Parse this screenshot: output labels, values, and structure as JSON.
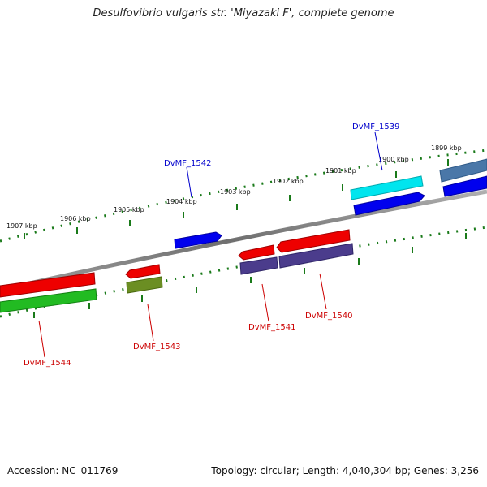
{
  "title": "Desulfovibrio vulgaris str. 'Miyazaki F', complete genome",
  "footer": {
    "accession": "Accession: NC_011769",
    "summary": "Topology: circular; Length: 4,040,304 bp; Genes: 3,256"
  },
  "colors": {
    "backbone": "#808080",
    "ruler": "#1a7a1a",
    "forward_label": "#0000cc",
    "reverse_label": "#cc0000"
  },
  "kbp_ticks": [
    {
      "name": "tick-1907",
      "label": "1907 kbp"
    },
    {
      "name": "tick-1906",
      "label": "1906 kbp"
    },
    {
      "name": "tick-1905",
      "label": "1905 kbp"
    },
    {
      "name": "tick-1904",
      "label": "1904 kbp"
    },
    {
      "name": "tick-1903",
      "label": "1903 kbp"
    },
    {
      "name": "tick-1902",
      "label": "1902 kbp"
    },
    {
      "name": "tick-1901",
      "label": "1901 kbp"
    },
    {
      "name": "tick-1900",
      "label": "1900 kbp"
    },
    {
      "name": "tick-1899",
      "label": "1899 kbp"
    }
  ],
  "gene_labels": [
    {
      "name": "label-dvmf-1539",
      "text": "DvMF_1539",
      "strand": "forward"
    },
    {
      "name": "label-dvmf-1542",
      "text": "DvMF_1542",
      "strand": "forward"
    },
    {
      "name": "label-dvmf-1541",
      "text": "DvMF_1541",
      "strand": "reverse"
    },
    {
      "name": "label-dvmf-1540",
      "text": "DvMF_1540",
      "strand": "reverse"
    },
    {
      "name": "label-dvmf-1543",
      "text": "DvMF_1543",
      "strand": "reverse"
    },
    {
      "name": "label-dvmf-1544",
      "text": "DvMF_1544",
      "strand": "reverse"
    }
  ],
  "features": [
    {
      "name": "forward-gene-blue-1",
      "color": "#0000ee"
    },
    {
      "name": "forward-gene-blue-2",
      "color": "#0000ee"
    },
    {
      "name": "forward-gene-blue-3",
      "color": "#0000ee"
    },
    {
      "name": "forward-cds-cyan",
      "color": "#00e5ee"
    },
    {
      "name": "forward-cds-steel",
      "color": "#4a77a8"
    },
    {
      "name": "reverse-gene-red-1541",
      "color": "#ee0000"
    },
    {
      "name": "reverse-gene-red-1540",
      "color": "#ee0000"
    },
    {
      "name": "reverse-gene-red-1543",
      "color": "#ee0000"
    },
    {
      "name": "reverse-gene-red-1544",
      "color": "#ee0000"
    },
    {
      "name": "reverse-cds-purple-1541",
      "color": "#4b3c8c"
    },
    {
      "name": "reverse-cds-purple-1540",
      "color": "#4b3c8c"
    },
    {
      "name": "reverse-cds-olive-1543",
      "color": "#6b8e23"
    },
    {
      "name": "reverse-cds-green-1544",
      "color": "#22bb22"
    }
  ]
}
